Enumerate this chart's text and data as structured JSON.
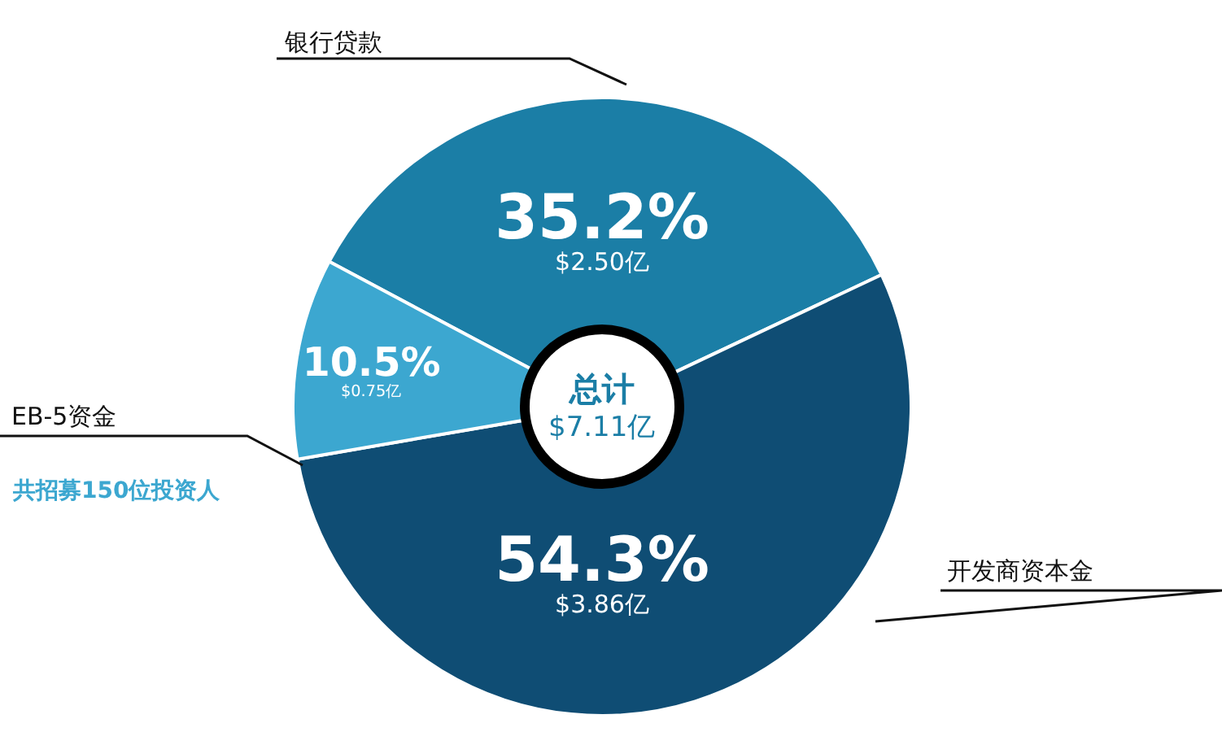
{
  "chart_data": {
    "type": "donut",
    "categories": [
      "银行贷款",
      "开发商资本金",
      "EB-5资金"
    ],
    "values": [
      35.2,
      54.3,
      10.5
    ],
    "colors": [
      "#1b7ea6",
      "#0f4d74",
      "#3ca7d0"
    ],
    "value_labels": [
      "35.2%\n$2.50亿",
      "54.3%\n$3.86亿",
      "10.5%\n$0.75亿"
    ],
    "annotations": [
      "总计\n$7.11亿",
      "共招募150位投资人"
    ],
    "legend": false
  }
}
